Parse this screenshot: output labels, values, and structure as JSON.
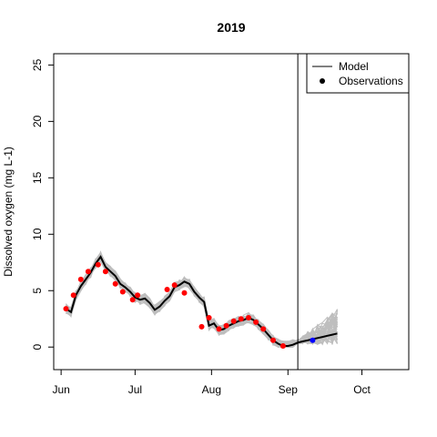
{
  "chart_data": {
    "type": "line",
    "title": "2019",
    "xlabel": "",
    "ylabel": "Dissolved oxygen (mg L-1)",
    "x_axis": "date",
    "xlim": [
      "2019-05-29",
      "2019-10-20"
    ],
    "ylim": [
      -2,
      26
    ],
    "x_ticks": [
      {
        "date": "2019-06-01",
        "label": "Jun"
      },
      {
        "date": "2019-07-01",
        "label": "Jul"
      },
      {
        "date": "2019-08-01",
        "label": "Aug"
      },
      {
        "date": "2019-09-01",
        "label": "Sep"
      },
      {
        "date": "2019-10-01",
        "label": "Oct"
      }
    ],
    "y_ticks": [
      0,
      5,
      10,
      15,
      20,
      25
    ],
    "grid": false,
    "forecast_start": "2019-09-05",
    "legend": {
      "position": "top-right",
      "entries": [
        {
          "label": "Model",
          "symbol": "line"
        },
        {
          "label": "Observations",
          "symbol": "point"
        }
      ]
    },
    "colors": {
      "ensemble": "#bebebe",
      "model": "#000000",
      "observed": "#ff0000",
      "forecast_observation": "#0000ff"
    },
    "series": [
      {
        "name": "Model",
        "kind": "line",
        "x": [
          "2019-06-03",
          "2019-06-05",
          "2019-06-07",
          "2019-06-09",
          "2019-06-11",
          "2019-06-13",
          "2019-06-15",
          "2019-06-17",
          "2019-06-19",
          "2019-06-21",
          "2019-06-23",
          "2019-06-25",
          "2019-06-27",
          "2019-06-29",
          "2019-07-01",
          "2019-07-03",
          "2019-07-05",
          "2019-07-07",
          "2019-07-09",
          "2019-07-11",
          "2019-07-13",
          "2019-07-15",
          "2019-07-17",
          "2019-07-19",
          "2019-07-21",
          "2019-07-23",
          "2019-07-25",
          "2019-07-27",
          "2019-07-29",
          "2019-07-31",
          "2019-08-02",
          "2019-08-04",
          "2019-08-06",
          "2019-08-08",
          "2019-08-10",
          "2019-08-12",
          "2019-08-14",
          "2019-08-16",
          "2019-08-18",
          "2019-08-20",
          "2019-08-22",
          "2019-08-24",
          "2019-08-26",
          "2019-08-28",
          "2019-08-30",
          "2019-09-01",
          "2019-09-03",
          "2019-09-05",
          "2019-09-07",
          "2019-09-09",
          "2019-09-11",
          "2019-09-13",
          "2019-09-15",
          "2019-09-17",
          "2019-09-19",
          "2019-09-21"
        ],
        "y": [
          3.4,
          3.1,
          4.6,
          5.4,
          6.0,
          6.6,
          7.4,
          8.0,
          7.1,
          6.7,
          6.3,
          5.6,
          5.3,
          4.9,
          4.4,
          4.2,
          4.3,
          3.9,
          3.3,
          3.6,
          4.1,
          4.5,
          5.3,
          5.5,
          5.8,
          5.6,
          4.9,
          4.4,
          4.0,
          1.9,
          2.1,
          1.5,
          1.6,
          1.9,
          2.1,
          2.3,
          2.4,
          2.6,
          2.4,
          2.0,
          1.6,
          1.1,
          0.6,
          0.3,
          0.1,
          0.1,
          0.2,
          0.4,
          0.5,
          0.6,
          0.7,
          0.8,
          0.9,
          1.0,
          1.1,
          1.2
        ]
      },
      {
        "name": "Observations",
        "kind": "points",
        "x": [
          "2019-06-03",
          "2019-06-06",
          "2019-06-09",
          "2019-06-12",
          "2019-06-16",
          "2019-06-19",
          "2019-06-23",
          "2019-06-26",
          "2019-06-30",
          "2019-07-02",
          "2019-07-14",
          "2019-07-17",
          "2019-07-21",
          "2019-07-28",
          "2019-07-31",
          "2019-08-04",
          "2019-08-07",
          "2019-08-10",
          "2019-08-13",
          "2019-08-16",
          "2019-08-19",
          "2019-08-22",
          "2019-08-26",
          "2019-08-30"
        ],
        "y": [
          3.4,
          4.6,
          6.0,
          6.7,
          7.3,
          6.7,
          5.6,
          4.9,
          4.2,
          4.6,
          5.1,
          5.5,
          4.8,
          1.8,
          2.6,
          1.6,
          1.9,
          2.3,
          2.5,
          2.6,
          2.2,
          1.6,
          0.6,
          0.1
        ]
      },
      {
        "name": "Observations",
        "kind": "points",
        "role": "forecast-period",
        "x": [
          "2019-09-11"
        ],
        "y": [
          0.6
        ]
      }
    ]
  }
}
